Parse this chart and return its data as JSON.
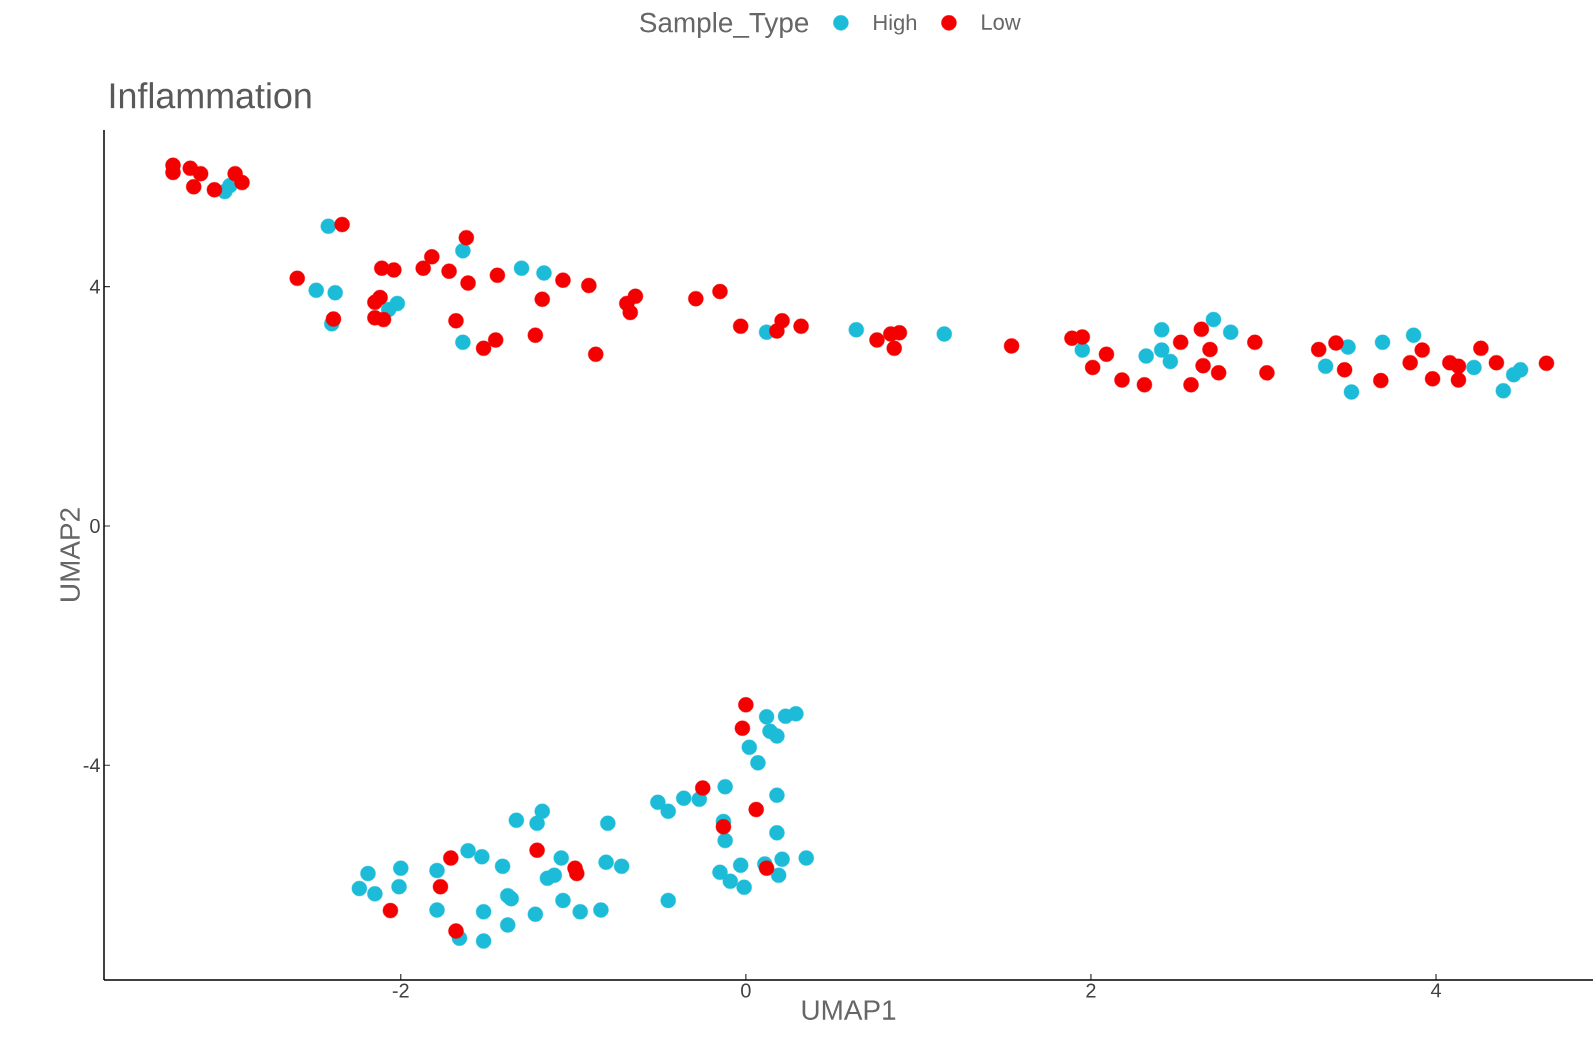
{
  "chart_data": {
    "type": "scatter",
    "title": "Inflammation",
    "xlabel": "UMAP1",
    "ylabel": "UMAP2",
    "legend_title": "Sample_Type",
    "legend": "top",
    "marker": "circle",
    "xlim": [
      -3.72,
      4.91
    ],
    "ylim": [
      -7.59,
      6.62
    ],
    "xticks": [
      -2,
      0,
      2,
      4
    ],
    "yticks": [
      -4,
      0,
      4
    ],
    "series": [
      {
        "name": "High",
        "color": "#1cbcd8",
        "x": [
          -3.02,
          -2.99,
          -2.42,
          -1.64,
          -2.49,
          -2.38,
          -2.4,
          -2.07,
          -2.02,
          -1.64,
          -1.3,
          -1.17,
          0.12,
          0.64,
          1.15,
          1.95,
          2.41,
          2.41,
          2.32,
          2.46,
          2.71,
          2.81,
          3.36,
          3.49,
          3.51,
          3.69,
          3.87,
          4.22,
          4.39,
          4.45,
          4.49,
          0.12,
          0.23,
          0.29,
          0.14,
          0.18,
          0.02,
          0.07,
          -0.12,
          0.18,
          -0.51,
          -0.45,
          -0.36,
          -0.27,
          -0.13,
          -0.12,
          0.18,
          0.21,
          0.35,
          0.11,
          -0.03,
          -0.15,
          -0.09,
          -0.01,
          0.19,
          -0.45,
          -0.8,
          -0.81,
          -0.72,
          -1.33,
          -1.18,
          -1.21,
          -1.07,
          -1.15,
          -1.11,
          -1.06,
          -0.96,
          -0.84,
          -1.61,
          -1.53,
          -1.41,
          -1.38,
          -1.36,
          -1.38,
          -1.22,
          -1.52,
          -1.52,
          -1.66,
          -1.79,
          -1.79,
          -2.0,
          -2.01,
          -2.19,
          -2.24,
          -2.15
        ],
        "values": [
          5.59,
          5.69,
          5.01,
          4.6,
          3.94,
          3.9,
          3.38,
          3.62,
          3.72,
          3.07,
          4.31,
          4.23,
          3.24,
          3.28,
          3.21,
          2.94,
          3.28,
          2.94,
          2.84,
          2.75,
          3.45,
          3.24,
          2.67,
          2.99,
          2.24,
          3.07,
          3.19,
          2.65,
          2.26,
          2.53,
          2.61,
          -3.19,
          -3.18,
          -3.14,
          -3.43,
          -3.51,
          -3.7,
          -3.96,
          -4.36,
          -4.5,
          -4.62,
          -4.77,
          -4.55,
          -4.57,
          -4.94,
          -5.26,
          -5.13,
          -5.57,
          -5.55,
          -5.65,
          -5.67,
          -5.79,
          -5.94,
          -6.04,
          -5.84,
          -6.26,
          -4.97,
          -5.62,
          -5.69,
          -4.92,
          -4.77,
          -4.97,
          -5.55,
          -5.89,
          -5.84,
          -6.26,
          -6.45,
          -6.42,
          -5.43,
          -5.53,
          -5.69,
          -6.18,
          -6.23,
          -6.67,
          -6.49,
          -6.45,
          -6.94,
          -6.89,
          -5.76,
          -6.42,
          -5.72,
          -6.03,
          -5.81,
          -6.06,
          -6.15
        ]
      },
      {
        "name": "Low",
        "color": "#f50000",
        "x": [
          -3.32,
          -3.32,
          -3.22,
          -3.16,
          -3.2,
          -3.08,
          -2.96,
          -2.92,
          -2.34,
          -2.6,
          -2.39,
          -1.62,
          -2.11,
          -2.04,
          -1.87,
          -1.82,
          -1.72,
          -1.61,
          -1.44,
          -1.06,
          -0.91,
          -2.15,
          -2.12,
          -2.15,
          -2.1,
          -1.68,
          -1.52,
          -1.45,
          -1.22,
          -1.18,
          -0.87,
          -0.69,
          -0.64,
          -0.67,
          -0.29,
          -0.15,
          -0.03,
          0.18,
          0.21,
          0.32,
          0.76,
          0.84,
          0.89,
          0.86,
          1.54,
          1.89,
          1.95,
          2.09,
          2.01,
          2.18,
          2.31,
          2.52,
          2.64,
          2.69,
          2.65,
          2.74,
          2.58,
          2.95,
          3.02,
          3.32,
          3.42,
          3.47,
          3.68,
          3.85,
          3.92,
          3.98,
          4.08,
          4.13,
          4.13,
          4.26,
          4.35,
          4.64,
          0.0,
          -0.02,
          -0.25,
          0.06,
          -0.13,
          0.12,
          -1.21,
          -0.99,
          -0.98,
          -1.71,
          -1.77,
          -2.06,
          -1.68
        ],
        "values": [
          6.03,
          5.91,
          5.98,
          5.89,
          5.67,
          5.62,
          5.89,
          5.74,
          5.04,
          4.14,
          3.46,
          4.82,
          4.31,
          4.28,
          4.31,
          4.5,
          4.26,
          4.06,
          4.19,
          4.11,
          4.02,
          3.74,
          3.82,
          3.48,
          3.45,
          3.43,
          2.97,
          3.11,
          3.19,
          3.79,
          2.87,
          3.72,
          3.84,
          3.57,
          3.8,
          3.92,
          3.34,
          3.26,
          3.43,
          3.34,
          3.11,
          3.21,
          3.23,
          2.97,
          3.01,
          3.14,
          3.16,
          2.87,
          2.65,
          2.44,
          2.36,
          3.07,
          3.29,
          2.95,
          2.68,
          2.56,
          2.36,
          3.07,
          2.56,
          2.95,
          3.06,
          2.61,
          2.43,
          2.73,
          2.94,
          2.46,
          2.73,
          2.67,
          2.44,
          2.97,
          2.73,
          2.72,
          -2.99,
          -3.38,
          -4.38,
          -4.74,
          -5.03,
          -5.72,
          -5.42,
          -5.72,
          -5.81,
          -5.55,
          -6.03,
          -6.43,
          -6.77
        ]
      }
    ]
  }
}
